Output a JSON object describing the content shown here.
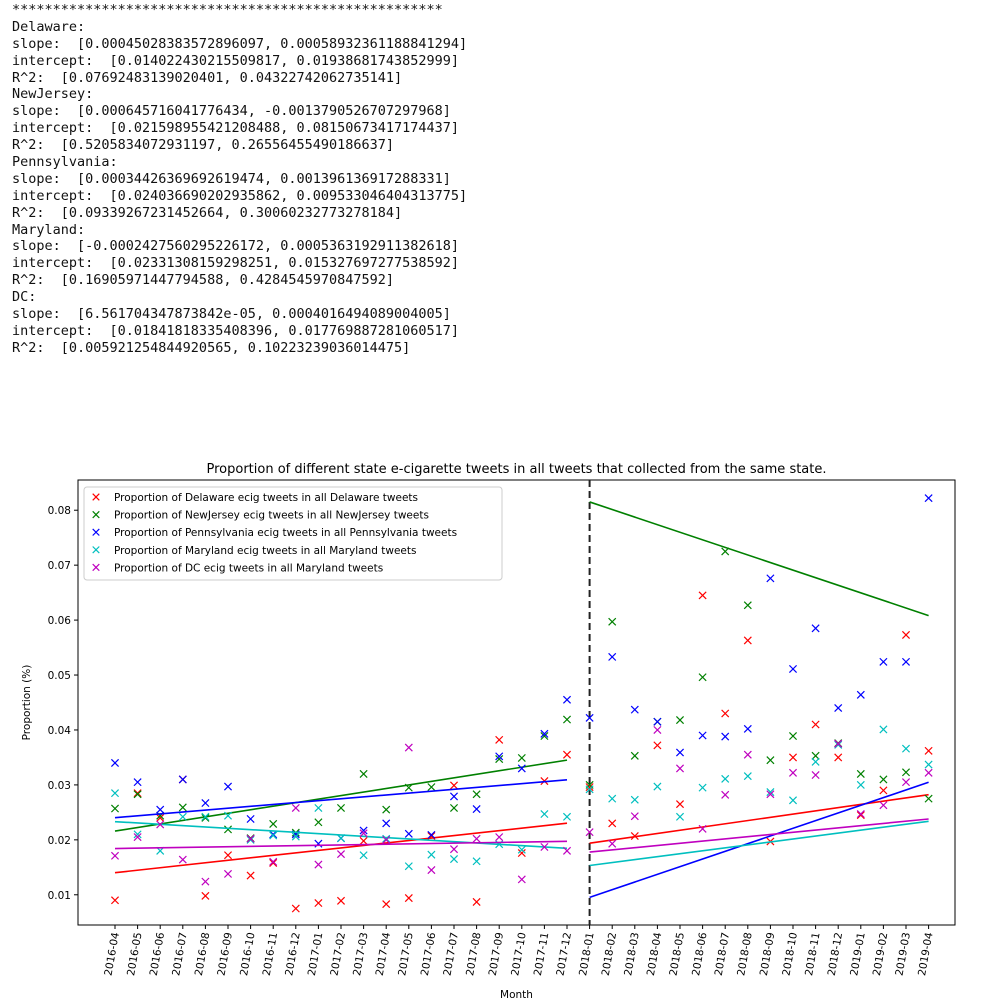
{
  "console": {
    "lines": [
      "*****************************************************",
      "Delaware:",
      "slope:  [0.00045028383572896097, 0.00058932361188841294]",
      "intercept:  [0.014022430215509817, 0.01938681743852999]",
      "R^2:  [0.07692483139020401, 0.04322742062735141]",
      "NewJersey:",
      "slope:  [0.000645716041776434, -0.0013790526707297968]",
      "intercept:  [0.021598955421208488, 0.08150673417174437]",
      "R^2:  [0.5205834072931197, 0.26556455490186637]",
      "Pennsylvania:",
      "slope:  [0.0003442636969261947​4, 0.0013961369172883​31]",
      "intercept:  [0.024036690202935862, 0.009533046404313775]",
      "R^2:  [0.09339267231452664, 0.30060232773278184]",
      "Maryland:",
      "slope:  [-0.0002427560295226172, 0.0005363192911382618]",
      "intercept:  [0.02331308159298251, 0.015327697277538592]",
      "R^2:  [0.16905971447794588, 0.4284545970847592]",
      "DC:",
      "slope:  [6.561704347873842e-05, 0.0004016494089004005]",
      "intercept:  [0.01841818335408396, 0.017769887281060517]",
      "R^2:  [0.005921254844920565, 0.10223239036014475]"
    ]
  },
  "chart_data": {
    "type": "scatter",
    "title": "Proportion of different state e-cigarette tweets in all tweets that collected from the same state.",
    "xlabel": "Month",
    "ylabel": "Proportion (%)",
    "categories": [
      "2016-04",
      "2016-05",
      "2016-06",
      "2016-07",
      "2016-08",
      "2016-09",
      "2016-10",
      "2016-11",
      "2016-12",
      "2017-01",
      "2017-02",
      "2017-03",
      "2017-04",
      "2017-05",
      "2017-06",
      "2017-07",
      "2017-08",
      "2017-09",
      "2017-10",
      "2017-11",
      "2017-12",
      "2018-01",
      "2018-02",
      "2018-03",
      "2018-04",
      "2018-05",
      "2018-06",
      "2018-07",
      "2018-08",
      "2018-09",
      "2018-10",
      "2018-11",
      "2018-12",
      "2019-01",
      "2019-02",
      "2019-03",
      "2019-04"
    ],
    "yticks": [
      "0.01",
      "0.02",
      "0.03",
      "0.04",
      "0.05",
      "0.06",
      "0.07",
      "0.08"
    ],
    "ylim": [
      0.0045,
      0.0855
    ],
    "split_category": "2018-01",
    "legend_position": "top-left",
    "marker": "×",
    "series": [
      {
        "name": "Proportion of Delaware ecig tweets in all Delaware tweets",
        "color": "#ff0000",
        "values": [
          0.009,
          0.0285,
          0.024,
          0.031,
          0.0098,
          0.0172,
          0.0135,
          0.0158,
          0.0075,
          0.0085,
          0.0089,
          0.0198,
          0.0083,
          0.0094,
          0.0207,
          0.0299,
          0.0087,
          0.0382,
          0.0176,
          0.0307,
          0.0355,
          0.0296,
          0.023,
          0.0207,
          0.0372,
          0.0265,
          0.0645,
          0.043,
          0.0563,
          0.0197,
          0.035,
          0.041,
          0.035,
          0.0245,
          0.029,
          0.0573,
          0.0362
        ],
        "fits": [
          [
            0.014022430215509817,
            0.00045028383572896097
          ],
          [
            0.01938681743852999,
            0.000589323611888413
          ]
        ]
      },
      {
        "name": "Proportion of NewJersey ecig tweets in all NewJersey tweets",
        "color": "#008000",
        "values": [
          0.0257,
          0.0283,
          0.0244,
          0.0259,
          0.024,
          0.0219,
          0.0203,
          0.0229,
          0.0213,
          0.0232,
          0.0258,
          0.032,
          0.0255,
          0.0295,
          0.0296,
          0.0258,
          0.0283,
          0.0347,
          0.0349,
          0.0389,
          0.0419,
          0.03,
          0.0597,
          0.0353,
          0.0415,
          0.0418,
          0.0496,
          0.0725,
          0.0627,
          0.0345,
          0.0389,
          0.0353,
          0.0376,
          0.032,
          0.031,
          0.0323,
          0.0275
        ],
        "fits": [
          [
            0.021598955421208488,
            0.000645716041776434
          ],
          [
            0.08150673417174437,
            -0.0013790526707297968
          ]
        ]
      },
      {
        "name": "Proportion of Pennsylvania ecig tweets in all Pennsylvania tweets",
        "color": "#0000ff",
        "values": [
          0.034,
          0.0305,
          0.0255,
          0.031,
          0.0267,
          0.0297,
          0.0238,
          0.021,
          0.021,
          0.0193,
          0.0203,
          0.0217,
          0.023,
          0.0211,
          0.0209,
          0.0279,
          0.0256,
          0.0352,
          0.033,
          0.0393,
          0.0455,
          0.0422,
          0.0533,
          0.0437,
          0.0415,
          0.0359,
          0.039,
          0.0388,
          0.0402,
          0.0676,
          0.0511,
          0.0585,
          0.044,
          0.0464,
          0.0524,
          0.0524,
          0.0822
        ],
        "fits": [
          [
            0.024036690202935862,
            0.00034426369692619474
          ],
          [
            0.009533046404313775,
            0.001396136917288331
          ]
        ]
      },
      {
        "name": "Proportion of Maryland ecig tweets in all Maryland tweets",
        "color": "#00bfbf",
        "values": [
          0.0285,
          0.021,
          0.018,
          0.0242,
          0.0242,
          0.0244,
          0.02,
          0.0208,
          0.0206,
          0.0258,
          0.0203,
          0.0172,
          0.0202,
          0.0152,
          0.0173,
          0.0165,
          0.0161,
          0.0192,
          0.0182,
          0.0247,
          0.0242,
          0.0292,
          0.0275,
          0.0273,
          0.0297,
          0.0242,
          0.0295,
          0.0311,
          0.0316,
          0.0287,
          0.0272,
          0.0342,
          0.0373,
          0.03,
          0.0401,
          0.0366,
          0.0337
        ],
        "fits": [
          [
            0.02331308159298251,
            -0.0002427560295226172
          ],
          [
            0.015327697277538592,
            0.0005363192911382618
          ]
        ]
      },
      {
        "name": "Proportion of DC ecig tweets in all Maryland tweets",
        "color": "#bf00bf",
        "values": [
          0.0171,
          0.0205,
          0.0228,
          0.0164,
          0.0124,
          0.0138,
          0.0202,
          0.016,
          0.0258,
          0.0155,
          0.0174,
          0.0212,
          0.02,
          0.0368,
          0.0145,
          0.0183,
          0.0202,
          0.0205,
          0.0128,
          0.0187,
          0.018,
          0.0214,
          0.0193,
          0.0243,
          0.04,
          0.033,
          0.022,
          0.0282,
          0.0355,
          0.0283,
          0.0322,
          0.0318,
          0.0375,
          0.0247,
          0.0263,
          0.0305,
          0.0322
        ],
        "fits": [
          [
            0.01841818335408396,
            6.561704347873842e-05
          ],
          [
            0.017769887281060517,
            0.0004016494089004005
          ]
        ]
      }
    ]
  }
}
